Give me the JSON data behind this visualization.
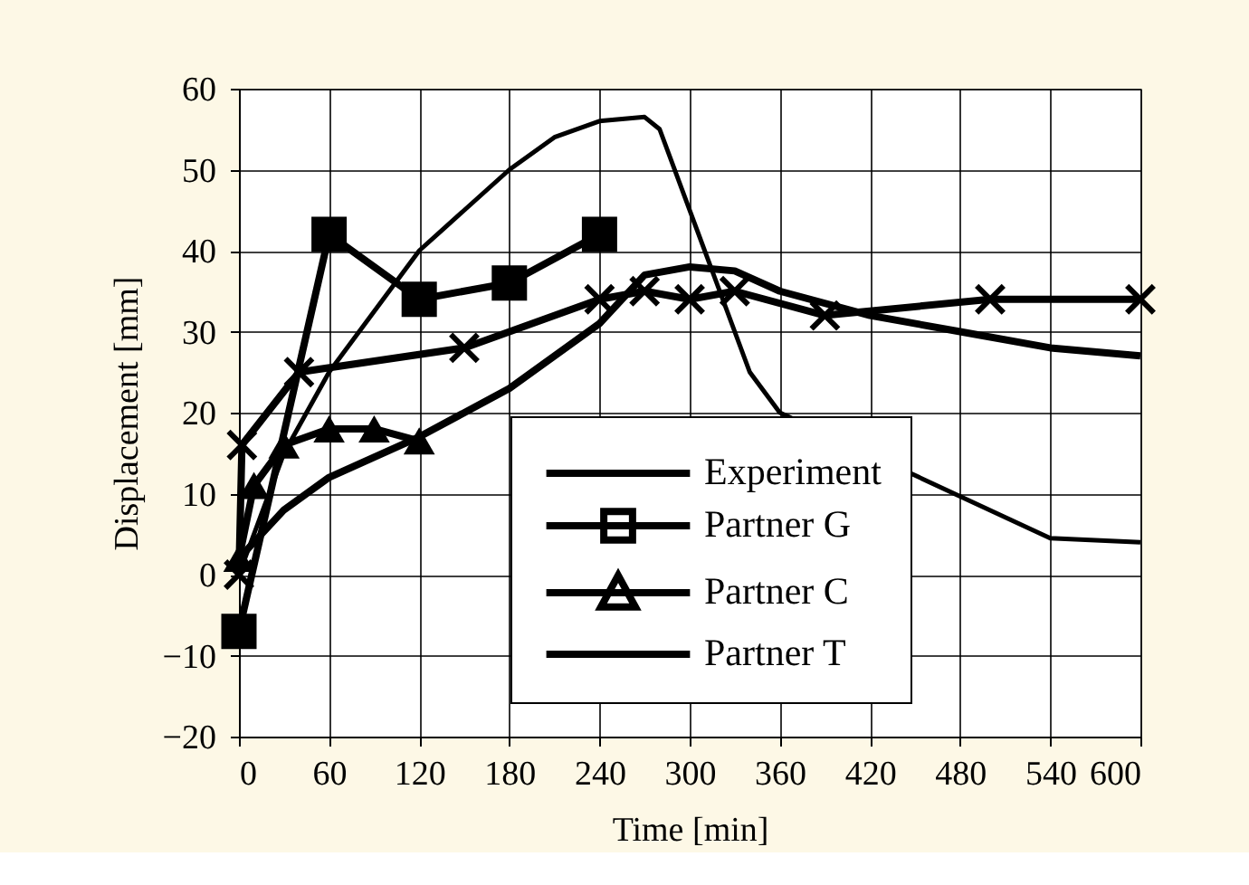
{
  "chart_data": {
    "type": "line",
    "xlabel": "Time [min]",
    "ylabel": "Displacement [mm]",
    "xlim": [
      0,
      600
    ],
    "xticks": [
      0,
      60,
      120,
      180,
      240,
      300,
      360,
      420,
      480,
      540,
      600
    ],
    "ylim": [
      -20,
      60
    ],
    "yticks": [
      -20,
      -10,
      0,
      10,
      20,
      30,
      40,
      50,
      60
    ],
    "grid": true,
    "legend": "bottom right",
    "series": [
      {
        "name": "Experiment",
        "color": "#000000",
        "marker": "none",
        "x": [
          0,
          30,
          60,
          120,
          180,
          240,
          270,
          300,
          330,
          360,
          420,
          480,
          540,
          600
        ],
        "values": [
          2,
          8,
          12,
          17,
          23,
          31,
          37,
          38,
          37.5,
          35,
          32,
          30,
          28,
          27
        ]
      },
      {
        "color": "#000000",
        "marker": "cross",
        "x": [
          0,
          2,
          40,
          150,
          240,
          270,
          300,
          330,
          390,
          500,
          600
        ],
        "values": [
          0,
          16,
          25,
          28,
          34,
          35,
          34,
          35,
          32,
          34,
          34
        ]
      },
      {
        "name": "Partner G",
        "color": "#000000",
        "marker": "square",
        "x": [
          0,
          60,
          120,
          180,
          240
        ],
        "values": [
          -7,
          42,
          34,
          36,
          42
        ]
      },
      {
        "name": "Partner C",
        "color": "#000000",
        "marker": "triangle",
        "x": [
          0,
          10,
          30,
          60,
          90,
          120
        ],
        "values": [
          2,
          11,
          16,
          18,
          18,
          16.5
        ]
      },
      {
        "name": "Partner T",
        "color": "#000000",
        "marker": "none",
        "x": [
          0,
          30,
          60,
          120,
          180,
          210,
          240,
          270,
          280,
          300,
          320,
          340,
          360,
          540,
          600
        ],
        "values": [
          0,
          15,
          25,
          40,
          50,
          54,
          56,
          56.5,
          55,
          45,
          35,
          25,
          20,
          4.5,
          4
        ]
      }
    ]
  }
}
